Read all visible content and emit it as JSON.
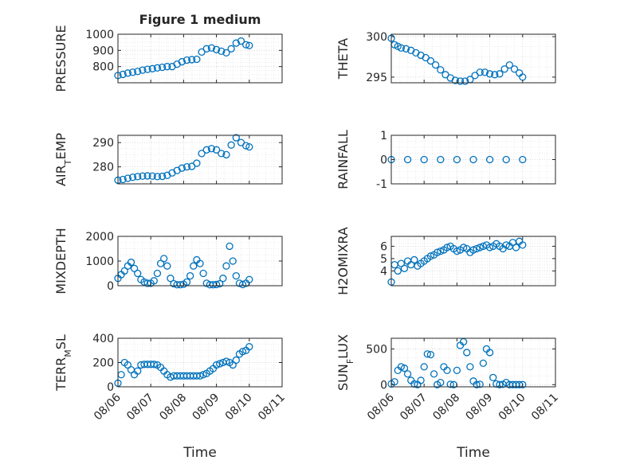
{
  "figure": {
    "title": "Figure 1 medium",
    "x_label": "Time",
    "x_ticks": [
      "08/06",
      "08/07",
      "08/08",
      "08/09",
      "08/10",
      "08/11"
    ],
    "marker_color": "#0072BD",
    "grid": "dotted",
    "marker": "open circle"
  },
  "chart_data": [
    {
      "type": "scatter",
      "ylabel": "PRESSURE",
      "ylim": [
        700,
        1000
      ],
      "yticks": [
        "800",
        "900",
        "1000"
      ],
      "x": [
        0.0,
        0.15,
        0.3,
        0.45,
        0.6,
        0.75,
        0.9,
        1.05,
        1.2,
        1.35,
        1.5,
        1.65,
        1.8,
        1.95,
        2.1,
        2.25,
        2.4,
        2.55,
        2.7,
        2.85,
        3.0,
        3.15,
        3.3,
        3.45,
        3.6,
        3.75,
        3.9,
        4.0
      ],
      "y": [
        745,
        752,
        760,
        765,
        770,
        778,
        783,
        787,
        792,
        796,
        800,
        800,
        815,
        830,
        840,
        843,
        845,
        890,
        910,
        915,
        905,
        895,
        885,
        910,
        945,
        958,
        935,
        930
      ]
    },
    {
      "type": "scatter",
      "ylabel": "THETA",
      "ylim": [
        294.3,
        300.3
      ],
      "yticks": [
        "295",
        "300"
      ],
      "x": [
        0.0,
        0.1,
        0.2,
        0.3,
        0.45,
        0.6,
        0.75,
        0.9,
        1.05,
        1.2,
        1.35,
        1.5,
        1.65,
        1.8,
        1.95,
        2.1,
        2.25,
        2.4,
        2.55,
        2.7,
        2.85,
        3.0,
        3.15,
        3.3,
        3.45,
        3.6,
        3.75,
        3.9,
        4.0
      ],
      "y": [
        299.8,
        299.0,
        298.8,
        298.6,
        298.5,
        298.3,
        298.0,
        297.7,
        297.4,
        297.0,
        296.5,
        295.9,
        295.3,
        294.9,
        294.6,
        294.5,
        294.5,
        294.7,
        295.2,
        295.6,
        295.6,
        295.4,
        295.3,
        295.4,
        296.0,
        296.5,
        296.0,
        295.5,
        295.0
      ]
    },
    {
      "type": "scatter",
      "ylabel": "AIR_TEMP",
      "ylim": [
        273,
        293
      ],
      "yticks": [
        "280",
        "290"
      ],
      "x": [
        0.0,
        0.15,
        0.3,
        0.45,
        0.6,
        0.75,
        0.9,
        1.05,
        1.2,
        1.35,
        1.5,
        1.65,
        1.8,
        1.95,
        2.1,
        2.25,
        2.4,
        2.55,
        2.7,
        2.85,
        3.0,
        3.15,
        3.3,
        3.45,
        3.6,
        3.75,
        3.9,
        4.0
      ],
      "y": [
        274.5,
        274.8,
        275.3,
        275.7,
        276.0,
        276.2,
        276.3,
        276.2,
        276.0,
        276.1,
        276.5,
        277.5,
        278.5,
        279.5,
        280.0,
        280.2,
        281.5,
        285.5,
        287.0,
        287.5,
        287.0,
        285.5,
        285.0,
        289.0,
        292.0,
        290.0,
        288.7,
        288.2
      ]
    },
    {
      "type": "scatter",
      "ylabel": "RAINFALL",
      "ylim": [
        -1,
        1
      ],
      "yticks": [
        "-1",
        "0",
        "1"
      ],
      "x": [
        0.0,
        0.5,
        1.0,
        1.5,
        2.0,
        2.5,
        3.0,
        3.5,
        4.0
      ],
      "y": [
        0,
        0,
        0,
        0,
        0,
        0,
        0,
        0,
        0
      ]
    },
    {
      "type": "scatter",
      "ylabel": "MIXDEPTH",
      "ylim": [
        0,
        2000
      ],
      "yticks": [
        "0",
        "1000",
        "2000"
      ],
      "x": [
        0.0,
        0.1,
        0.2,
        0.3,
        0.4,
        0.5,
        0.6,
        0.7,
        0.8,
        0.9,
        1.0,
        1.1,
        1.2,
        1.3,
        1.4,
        1.5,
        1.6,
        1.7,
        1.8,
        1.9,
        2.0,
        2.1,
        2.2,
        2.3,
        2.4,
        2.5,
        2.6,
        2.7,
        2.8,
        2.9,
        3.0,
        3.1,
        3.2,
        3.3,
        3.4,
        3.5,
        3.6,
        3.7,
        3.8,
        3.9,
        4.0
      ],
      "y": [
        300,
        450,
        600,
        800,
        950,
        700,
        500,
        250,
        150,
        100,
        100,
        200,
        500,
        900,
        1100,
        800,
        300,
        80,
        40,
        40,
        60,
        150,
        400,
        800,
        1050,
        900,
        500,
        100,
        40,
        40,
        50,
        80,
        300,
        800,
        1600,
        1000,
        400,
        100,
        50,
        100,
        250
      ]
    },
    {
      "type": "scatter",
      "ylabel": "H2OMIXRA",
      "ylim": [
        2.8,
        6.8
      ],
      "yticks": [
        "4",
        "5",
        "6"
      ],
      "x": [
        0.0,
        0.1,
        0.2,
        0.3,
        0.4,
        0.5,
        0.6,
        0.7,
        0.8,
        0.9,
        1.0,
        1.1,
        1.2,
        1.3,
        1.4,
        1.5,
        1.6,
        1.7,
        1.8,
        1.9,
        2.0,
        2.1,
        2.2,
        2.3,
        2.4,
        2.5,
        2.6,
        2.7,
        2.8,
        2.9,
        3.0,
        3.1,
        3.2,
        3.3,
        3.4,
        3.5,
        3.6,
        3.7,
        3.8,
        3.9,
        4.0
      ],
      "y": [
        3.1,
        4.5,
        4.0,
        4.6,
        4.2,
        4.8,
        4.5,
        4.9,
        4.4,
        4.6,
        4.8,
        5.0,
        5.2,
        5.3,
        5.5,
        5.6,
        5.7,
        5.9,
        6.0,
        5.8,
        5.6,
        5.7,
        5.9,
        5.8,
        5.5,
        5.7,
        5.8,
        5.9,
        6.0,
        6.1,
        5.9,
        6.0,
        6.2,
        6.0,
        5.8,
        6.1,
        6.0,
        6.3,
        5.9,
        6.4,
        6.1
      ]
    },
    {
      "type": "scatter",
      "ylabel": "TERR_MSL",
      "ylim": [
        0,
        400
      ],
      "yticks": [
        "0",
        "200",
        "400"
      ],
      "x": [
        0.0,
        0.1,
        0.2,
        0.3,
        0.4,
        0.5,
        0.6,
        0.7,
        0.8,
        0.9,
        1.0,
        1.1,
        1.2,
        1.3,
        1.4,
        1.5,
        1.6,
        1.7,
        1.8,
        1.9,
        2.0,
        2.1,
        2.2,
        2.3,
        2.4,
        2.5,
        2.6,
        2.7,
        2.8,
        2.9,
        3.0,
        3.1,
        3.2,
        3.3,
        3.4,
        3.5,
        3.6,
        3.7,
        3.8,
        3.9,
        4.0
      ],
      "y": [
        30,
        100,
        200,
        180,
        140,
        100,
        130,
        180,
        185,
        185,
        185,
        185,
        180,
        160,
        130,
        100,
        80,
        90,
        90,
        90,
        90,
        90,
        90,
        90,
        90,
        90,
        100,
        110,
        130,
        150,
        180,
        190,
        200,
        210,
        200,
        180,
        220,
        270,
        290,
        300,
        330
      ]
    },
    {
      "type": "scatter",
      "ylabel": "SUN_FLUX",
      "ylim": [
        -30,
        650
      ],
      "yticks": [
        "0",
        "500"
      ],
      "x": [
        0.0,
        0.1,
        0.2,
        0.3,
        0.4,
        0.5,
        0.6,
        0.7,
        0.8,
        0.9,
        1.0,
        1.1,
        1.2,
        1.3,
        1.4,
        1.5,
        1.6,
        1.7,
        1.8,
        1.9,
        2.0,
        2.1,
        2.2,
        2.3,
        2.4,
        2.5,
        2.6,
        2.7,
        2.8,
        2.9,
        3.0,
        3.1,
        3.2,
        3.3,
        3.4,
        3.5,
        3.6,
        3.7,
        3.8,
        3.9,
        4.0
      ],
      "y": [
        10,
        40,
        200,
        250,
        230,
        150,
        60,
        10,
        0,
        60,
        250,
        430,
        420,
        150,
        0,
        30,
        250,
        200,
        5,
        0,
        200,
        550,
        600,
        450,
        250,
        50,
        0,
        5,
        300,
        500,
        450,
        100,
        10,
        0,
        5,
        30,
        0,
        0,
        0,
        0,
        0
      ]
    }
  ]
}
